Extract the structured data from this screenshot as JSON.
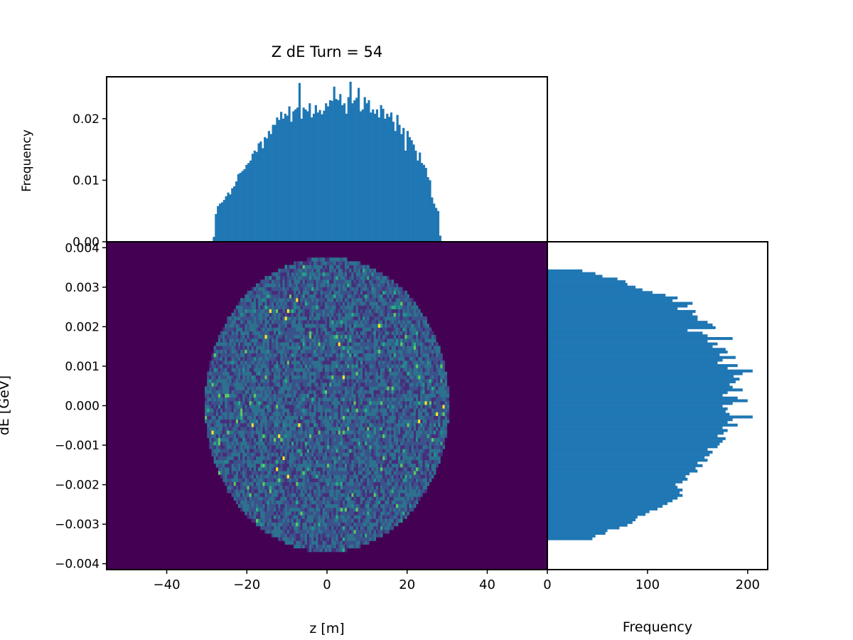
{
  "chart_data": [
    {
      "panel": "top-marginal",
      "type": "bar",
      "title": "Z dE Turn = 54",
      "ylabel": "Frequency",
      "xlim": [
        -55,
        55
      ],
      "ylim": [
        0,
        0.0268
      ],
      "yticks": [
        0.0,
        0.01,
        0.02
      ],
      "ytick_labels": [
        "0.00",
        "0.01",
        "0.02"
      ],
      "color": "#1f77b4",
      "bin_edges_range": [
        -28.5,
        28.5
      ],
      "values": [
        0.0008,
        0.0045,
        0.0058,
        0.0062,
        0.0064,
        0.0068,
        0.0074,
        0.008,
        0.0077,
        0.0087,
        0.009,
        0.0098,
        0.011,
        0.0112,
        0.0115,
        0.0118,
        0.0125,
        0.0128,
        0.0132,
        0.0143,
        0.0148,
        0.0146,
        0.016,
        0.0163,
        0.0152,
        0.017,
        0.0168,
        0.018,
        0.0175,
        0.019,
        0.019,
        0.0202,
        0.0198,
        0.0211,
        0.02,
        0.0208,
        0.0205,
        0.022,
        0.0195,
        0.0212,
        0.0215,
        0.0218,
        0.0258,
        0.02,
        0.0218,
        0.0215,
        0.0212,
        0.0225,
        0.0202,
        0.0208,
        0.0222,
        0.021,
        0.0214,
        0.0207,
        0.0213,
        0.0225,
        0.022,
        0.023,
        0.0229,
        0.0252,
        0.0232,
        0.023,
        0.024,
        0.0222,
        0.0225,
        0.0208,
        0.0235,
        0.026,
        0.0225,
        0.023,
        0.0234,
        0.025,
        0.0212,
        0.0215,
        0.0235,
        0.0225,
        0.023,
        0.021,
        0.0215,
        0.0208,
        0.0215,
        0.0202,
        0.0222,
        0.0216,
        0.02,
        0.0208,
        0.0203,
        0.021,
        0.0195,
        0.018,
        0.0206,
        0.019,
        0.0175,
        0.0185,
        0.0148,
        0.018,
        0.017,
        0.0165,
        0.0158,
        0.0148,
        0.0132,
        0.0145,
        0.0128,
        0.0125,
        0.012,
        0.0105,
        0.01,
        0.0072,
        0.0062,
        0.0055,
        0.005,
        0.001
      ]
    },
    {
      "panel": "main",
      "type": "heatmap",
      "xlabel": "z [m]",
      "ylabel": "dE [GeV]",
      "xlim": [
        -55,
        55
      ],
      "ylim": [
        -0.00415,
        0.00415
      ],
      "xticks": [
        -40,
        -20,
        0,
        20,
        40
      ],
      "xtick_labels": [
        "−40",
        "−20",
        "0",
        "20",
        "40"
      ],
      "yticks": [
        -0.004,
        -0.003,
        -0.002,
        -0.001,
        0.0,
        0.001,
        0.002,
        0.003,
        0.004
      ],
      "ytick_labels": [
        "−0.004",
        "−0.003",
        "−0.002",
        "−0.001",
        "0.000",
        "0.001",
        "0.002",
        "0.003",
        "0.004"
      ],
      "colormap": "viridis",
      "background_color": "#440154",
      "distribution": {
        "shape": "ellipse",
        "z_range": [
          -30.5,
          30.5
        ],
        "dE_range": [
          -0.0037,
          0.00375
        ]
      }
    },
    {
      "panel": "right-marginal",
      "type": "bar",
      "orientation": "horizontal",
      "xlabel": "Frequency",
      "xlim": [
        0,
        220
      ],
      "xticks": [
        0,
        100,
        200
      ],
      "xtick_labels": [
        "0",
        "100",
        "200"
      ],
      "color": "#1f77b4",
      "bin_range": [
        -0.0034,
        0.00345
      ],
      "values": [
        45,
        48,
        58,
        60,
        72,
        80,
        85,
        88,
        90,
        98,
        102,
        110,
        115,
        120,
        125,
        130,
        135,
        132,
        135,
        130,
        128,
        135,
        140,
        138,
        142,
        150,
        148,
        155,
        150,
        160,
        157,
        162,
        165,
        160,
        170,
        172,
        175,
        178,
        170,
        176,
        180,
        175,
        190,
        180,
        185,
        205,
        182,
        178,
        180,
        175,
        185,
        200,
        190,
        175,
        180,
        195,
        185,
        182,
        188,
        192,
        186,
        195,
        205,
        180,
        190,
        170,
        175,
        188,
        172,
        180,
        178,
        165,
        170,
        160,
        185,
        160,
        155,
        140,
        168,
        165,
        160,
        150,
        150,
        145,
        148,
        130,
        140,
        145,
        125,
        130,
        118,
        105,
        95,
        88,
        80,
        78,
        70,
        55,
        48,
        35
      ]
    }
  ]
}
